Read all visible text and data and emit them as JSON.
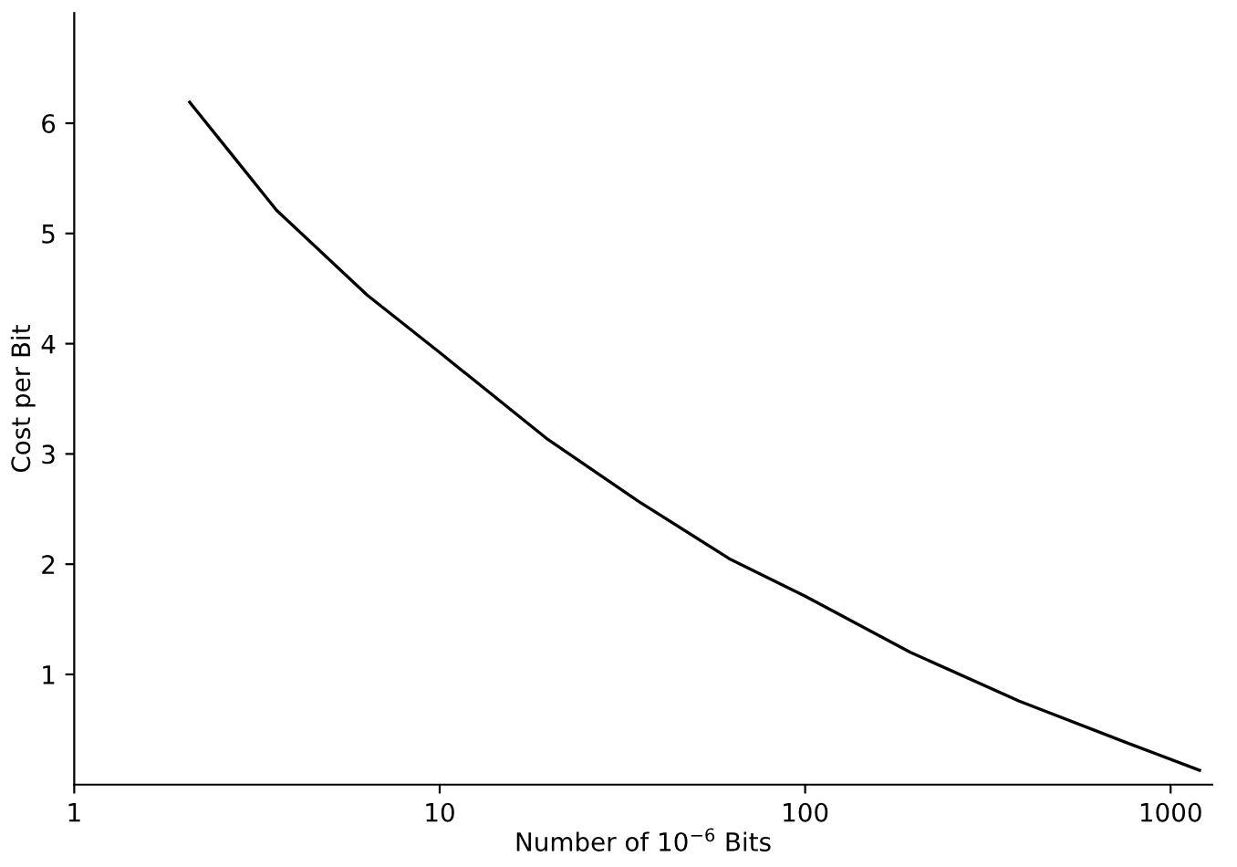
{
  "chart_data": {
    "type": "line",
    "xlabel": "Number of 10$^{−6}$ Bits",
    "ylabel": "Cost per Bit",
    "series": [
      {
        "color": "#000000",
        "x": [
          2.07,
          3.58,
          6.34,
          10,
          19.8,
          35,
          62,
          100,
          194,
          384,
          759,
          1200
        ],
        "values": [
          6.19,
          5.21,
          4.44,
          3.92,
          3.13,
          2.57,
          2.05,
          1.71,
          1.2,
          0.76,
          0.38,
          0.13
        ]
      }
    ],
    "log": "x",
    "xlim": [
      1,
      1300
    ],
    "xticks": [
      1,
      10,
      100,
      1000
    ],
    "ylim": [
      0,
      7
    ],
    "yticks": [
      1,
      2,
      3,
      4,
      5,
      6
    ],
    "grid": false,
    "legend": false,
    "marker": "none",
    "line_style": "solid"
  }
}
